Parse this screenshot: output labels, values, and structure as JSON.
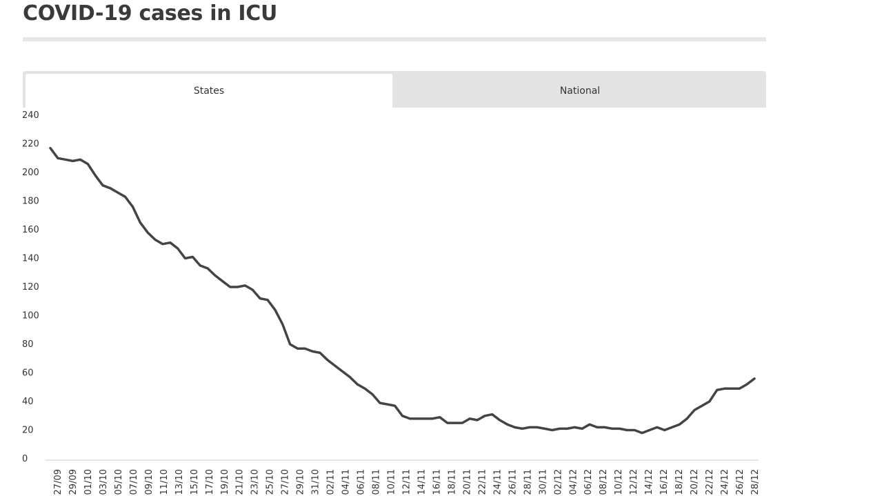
{
  "page": {
    "title": "COVID-19 cases in ICU"
  },
  "tabs": [
    {
      "label": "States",
      "active": true
    },
    {
      "label": "National",
      "active": false
    }
  ],
  "colors": {
    "line": "#444444",
    "tab_bg": "#e3e3e3",
    "rule": "#e6e6e6"
  },
  "chart_data": {
    "type": "line",
    "title": "",
    "xlabel": "",
    "ylabel": "",
    "ylim": [
      0,
      240
    ],
    "yticks": [
      0,
      20,
      40,
      60,
      80,
      100,
      120,
      140,
      160,
      180,
      200,
      220,
      240
    ],
    "grid": false,
    "x_labels": [
      "27/09",
      "29/09",
      "01/10",
      "03/10",
      "05/10",
      "07/10",
      "09/10",
      "11/10",
      "13/10",
      "15/10",
      "17/10",
      "19/10",
      "21/10",
      "23/10",
      "25/10",
      "27/10",
      "29/10",
      "31/10",
      "02/11",
      "04/11",
      "06/11",
      "08/11",
      "10/11",
      "12/11",
      "14/11",
      "16/11",
      "18/11",
      "20/11",
      "22/11",
      "24/11",
      "26/11",
      "28/11",
      "30/11",
      "02/12",
      "04/12",
      "06/12",
      "08/12",
      "10/12",
      "12/12",
      "14/12",
      "16/12",
      "18/12",
      "20/12",
      "22/12",
      "24/12",
      "26/12",
      "28/12"
    ],
    "series": [
      {
        "values": [
          217,
          210,
          209,
          208,
          209,
          206,
          198,
          191,
          189,
          186,
          183,
          176,
          165,
          158,
          153,
          150,
          151,
          147,
          140,
          141,
          135,
          133,
          128,
          124,
          120,
          120,
          121,
          118,
          112,
          111,
          104,
          94,
          80,
          77,
          77,
          75,
          74,
          69,
          65,
          61,
          57,
          52,
          49,
          45,
          39,
          38,
          37,
          30,
          28,
          28,
          28,
          28,
          29,
          25,
          25,
          25,
          28,
          27,
          30,
          31,
          27,
          24,
          22,
          21,
          22,
          22,
          21,
          20,
          21,
          21,
          22,
          21,
          24,
          22,
          22,
          21,
          21,
          20,
          20,
          18,
          20,
          22,
          20,
          22,
          24,
          28,
          34,
          37,
          40,
          48,
          49,
          49,
          49,
          52,
          56
        ]
      }
    ]
  }
}
